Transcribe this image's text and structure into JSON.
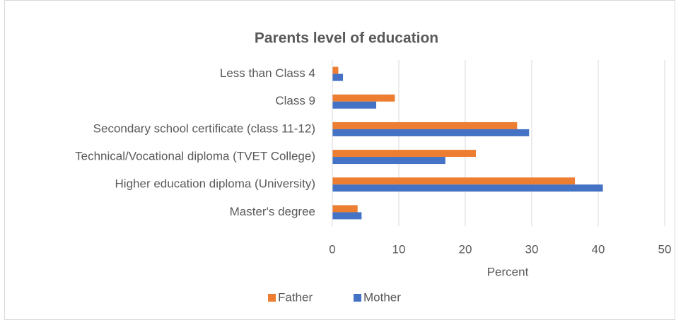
{
  "chart_data": {
    "type": "hbar",
    "title": "Parents level of education",
    "categories": [
      "Less than Class 4",
      "Class 9",
      "Secondary school certificate (class 11-12)",
      "Technical/Vocational diploma (TVET College)",
      "Higher education diploma (University)",
      "Master's degree"
    ],
    "series": [
      {
        "name": "Father",
        "color": "#ed7d31",
        "values": [
          0.9,
          9.4,
          27.8,
          21.6,
          36.5,
          3.8
        ]
      },
      {
        "name": "Mother",
        "color": "#4472c4",
        "values": [
          1.6,
          6.6,
          29.6,
          17.0,
          40.7,
          4.4
        ]
      }
    ],
    "xlabel": "Percent",
    "xlim": [
      0,
      50
    ],
    "xticks": [
      0,
      10,
      20,
      30,
      40,
      50
    ],
    "grid": true,
    "legend": "bottom"
  }
}
